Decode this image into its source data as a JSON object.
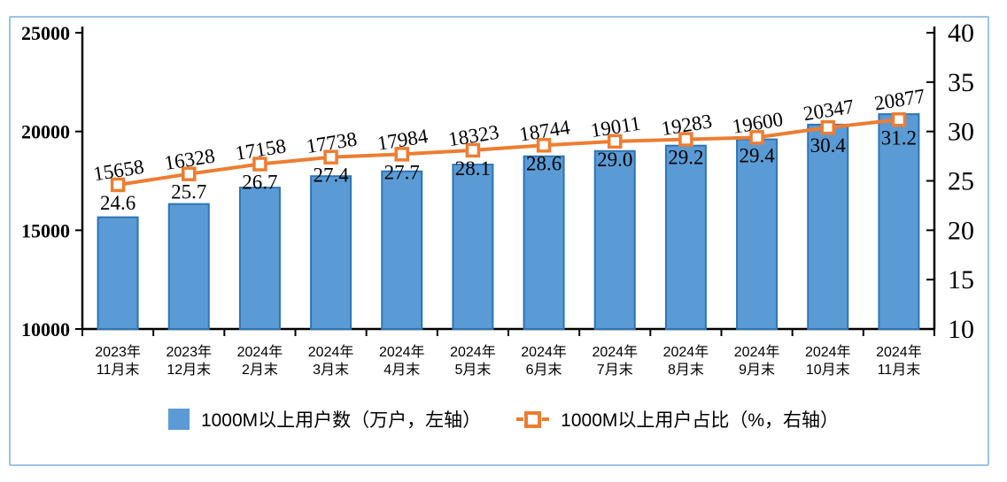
{
  "chart_data": {
    "type": "combo-bar-line",
    "title": "",
    "categories": [
      [
        "2023年",
        "11月末"
      ],
      [
        "2023年",
        "12月末"
      ],
      [
        "2024年",
        "2月末"
      ],
      [
        "2024年",
        "3月末"
      ],
      [
        "2024年",
        "4月末"
      ],
      [
        "2024年",
        "5月末"
      ],
      [
        "2024年",
        "6月末"
      ],
      [
        "2024年",
        "7月末"
      ],
      [
        "2024年",
        "8月末"
      ],
      [
        "2024年",
        "9月末"
      ],
      [
        "2024年",
        "10月末"
      ],
      [
        "2024年",
        "11月末"
      ]
    ],
    "series": [
      {
        "name": "1000M以上用户数（万户，左轴）",
        "type": "bar",
        "axis": "left",
        "values": [
          15658,
          16328,
          17158,
          17738,
          17984,
          18323,
          18744,
          19011,
          19283,
          19600,
          20347,
          20877
        ],
        "labels": [
          "15658",
          "16328",
          "17158",
          "17738",
          "17984",
          "18323",
          "18744",
          "19011",
          "19283",
          "19600",
          "20347",
          "20877"
        ]
      },
      {
        "name": "1000M以上用户占比（%，右轴）",
        "type": "line",
        "axis": "right",
        "values": [
          24.6,
          25.7,
          26.7,
          27.4,
          27.7,
          28.1,
          28.6,
          29.0,
          29.2,
          29.4,
          30.4,
          31.2
        ],
        "labels": [
          "24.6",
          "25.7",
          "26.7",
          "27.4",
          "27.7",
          "28.1",
          "28.6",
          "29.0",
          "29.2",
          "29.4",
          "30.4",
          "31.2"
        ]
      }
    ],
    "left_axis": {
      "min": 10000,
      "max": 25000,
      "ticks": [
        25000,
        20000,
        15000,
        10000
      ]
    },
    "right_axis": {
      "min": 10,
      "max": 40,
      "ticks": [
        40,
        35,
        30,
        25,
        20,
        15,
        10
      ]
    },
    "grid": false,
    "legend_position": "bottom",
    "colors": {
      "bar_fill": "#5B9BD5",
      "bar_border": "#2E75B6",
      "line": "#ED7D31",
      "marker_fill": "#FFFFFF",
      "frame": "#9DC3E6",
      "axis": "#000000",
      "x_label": "#595959",
      "data_label": "#000000"
    }
  }
}
